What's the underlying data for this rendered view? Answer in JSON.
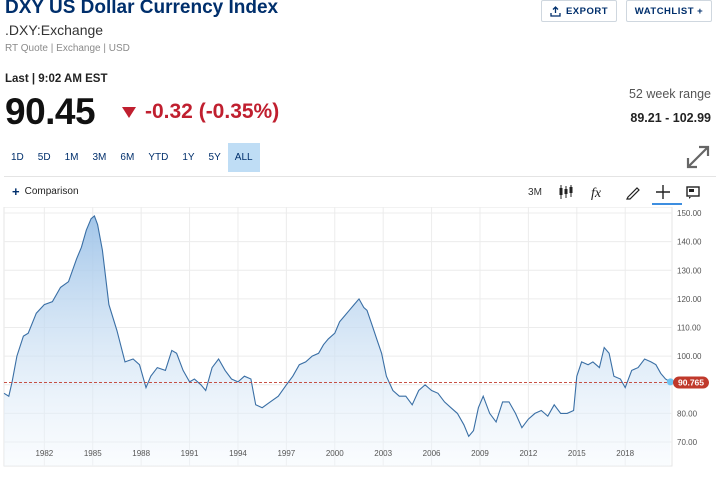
{
  "header": {
    "title": "DXY US Dollar Currency Index",
    "symbol": ".DXY:Exchange",
    "subtitle": "RT Quote | Exchange | USD",
    "export_label": "EXPORT",
    "watchlist_label": "WATCHLIST +"
  },
  "quote": {
    "last_label": "Last | 9:02 AM EST",
    "price": "90.45",
    "change": "-0.32 (-0.35%)",
    "week52_label": "52 week range",
    "week52_value": "89.21 - 102.99"
  },
  "ranges": [
    "1D",
    "5D",
    "1M",
    "3M",
    "6M",
    "YTD",
    "1Y",
    "5Y",
    "ALL"
  ],
  "active_range": "ALL",
  "toolbar": {
    "comparison_label": "Comparison",
    "interval_label": "3M",
    "icons": [
      "candlestick-icon",
      "fx-icon",
      "pencil-icon",
      "crosshair-icon",
      "news-icon"
    ]
  },
  "colors": {
    "brand": "#002f6c",
    "negative": "#c01f2f",
    "line": "#3a6fa5",
    "reference": "#c0392b",
    "active_range_bg": "#bfddf5"
  },
  "chart_data": {
    "type": "area",
    "ylim": [
      70,
      150
    ],
    "xlim": [
      1979.5,
      2020.9
    ],
    "y_ticks": [
      "70.00",
      "80.00",
      "90.00",
      "100.00",
      "110.00",
      "120.00",
      "130.00",
      "140.00",
      "150.00"
    ],
    "x_ticks": [
      "1982",
      "1985",
      "1988",
      "1991",
      "1994",
      "1997",
      "2000",
      "2003",
      "2006",
      "2009",
      "2012",
      "2015",
      "2018"
    ],
    "reference_value": 90.765,
    "reference_label": "90.765",
    "grid": true,
    "series": [
      {
        "x": [
          1979.5,
          1979.8,
          1980.0,
          1980.3,
          1980.7,
          1981.0,
          1981.5,
          1982.0,
          1982.5,
          1983.0,
          1983.5,
          1984.0,
          1984.3,
          1984.6,
          1984.9,
          1985.1,
          1985.3,
          1985.6,
          1986.0,
          1986.5,
          1987.0,
          1987.5,
          1987.9,
          1988.3,
          1988.6,
          1989.0,
          1989.5,
          1989.9,
          1990.2,
          1990.6,
          1991.0,
          1991.3,
          1991.7,
          1992.0,
          1992.4,
          1992.8,
          1993.2,
          1993.6,
          1994.0,
          1994.4,
          1994.8,
          1995.1,
          1995.5,
          1996.0,
          1996.5,
          1997.0,
          1997.4,
          1997.8,
          1998.2,
          1998.6,
          1999.0,
          1999.3,
          1999.6,
          2000.0,
          2000.3,
          2000.6,
          2000.9,
          2001.2,
          2001.5,
          2001.8,
          2002.0,
          2002.3,
          2002.6,
          2002.9,
          2003.2,
          2003.6,
          2004.0,
          2004.4,
          2004.8,
          2005.2,
          2005.6,
          2006.0,
          2006.4,
          2006.8,
          2007.2,
          2007.6,
          2008.0,
          2008.3,
          2008.6,
          2008.9,
          2009.2,
          2009.6,
          2010.0,
          2010.4,
          2010.8,
          2011.2,
          2011.6,
          2012.0,
          2012.4,
          2012.8,
          2013.2,
          2013.6,
          2014.0,
          2014.4,
          2014.8,
          2015.0,
          2015.3,
          2015.7,
          2016.0,
          2016.4,
          2016.7,
          2017.0,
          2017.3,
          2017.7,
          2018.0,
          2018.4,
          2018.8,
          2019.2,
          2019.6,
          2019.9,
          2020.2,
          2020.5,
          2020.8
        ],
        "y": [
          87,
          86,
          91,
          100,
          107,
          108,
          115,
          118,
          119,
          124,
          126,
          134,
          138,
          144,
          148,
          149,
          146,
          137,
          118,
          109,
          98,
          99,
          97,
          89,
          93,
          96,
          95,
          102,
          101,
          95,
          91,
          92,
          90,
          88,
          96,
          99,
          95,
          92,
          91,
          93,
          92,
          83,
          82,
          84,
          86,
          90,
          93,
          97,
          98,
          100,
          101,
          104,
          106,
          108,
          112,
          114,
          116,
          118,
          120,
          117,
          116,
          111,
          106,
          101,
          93,
          88,
          86,
          86,
          83,
          88,
          90,
          88,
          87,
          84,
          82,
          80,
          76,
          72,
          74,
          82,
          86,
          80,
          77,
          84,
          84,
          80,
          75,
          78,
          80,
          81,
          79,
          83,
          80,
          80,
          81,
          93,
          98,
          97,
          98,
          96,
          103,
          101,
          93,
          92,
          89,
          95,
          96,
          99,
          98,
          97,
          94,
          92,
          91
        ]
      }
    ]
  }
}
